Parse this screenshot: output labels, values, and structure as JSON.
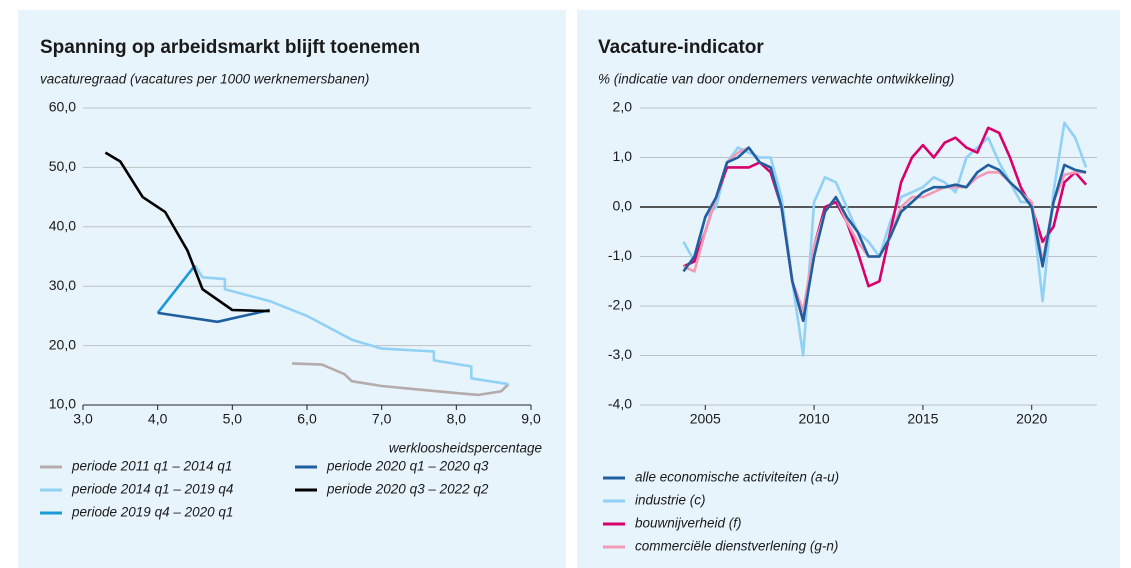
{
  "chart_data": [
    {
      "type": "line",
      "title": "Spanning op arbeidsmarkt blijft toenemen",
      "y_label": "vacaturegraad (vacatures per 1000 werknemersbanen)",
      "x_label": "werkloosheidspercentage",
      "xlim": [
        3,
        9
      ],
      "xticks": [
        {
          "value": 3,
          "label": "3,0"
        },
        {
          "value": 4,
          "label": "4,0"
        },
        {
          "value": 5,
          "label": "5,0"
        },
        {
          "value": 6,
          "label": "6,0"
        },
        {
          "value": 7,
          "label": "7,0"
        },
        {
          "value": 8,
          "label": "8,0"
        },
        {
          "value": 9,
          "label": "9,0"
        }
      ],
      "ylim": [
        10,
        60
      ],
      "yticks": [
        {
          "value": 10,
          "label": "10,0"
        },
        {
          "value": 20,
          "label": "20,0"
        },
        {
          "value": 30,
          "label": "30,0"
        },
        {
          "value": 40,
          "label": "40,0"
        },
        {
          "value": 50,
          "label": "50,0"
        },
        {
          "value": 60,
          "label": "60,0"
        }
      ],
      "grid": true,
      "series": [
        {
          "name": "periode 2011 q1 – 2014 q1",
          "color": "#b5abab",
          "x": [
            5.8,
            6.2,
            6.5,
            6.6,
            7.0,
            7.5,
            8.0,
            8.3,
            8.6,
            8.7
          ],
          "values": [
            17,
            16.8,
            15.2,
            14,
            13.2,
            12.6,
            12,
            11.7,
            12.3,
            13.5
          ]
        },
        {
          "name": "periode 2014 q1 – 2019 q4",
          "color": "#91d1f5",
          "x": [
            8.7,
            8.2,
            8.2,
            7.7,
            7.7,
            7.0,
            6.6,
            6.0,
            5.5,
            4.9,
            4.9,
            4.6,
            4.5
          ],
          "values": [
            13.5,
            14.5,
            16.5,
            17.5,
            19,
            19.5,
            21,
            25,
            27.5,
            29.5,
            31.2,
            31.5,
            33.5
          ]
        },
        {
          "name": "periode 2019 q4 – 2020 q1",
          "color": "#1a9ad9",
          "x": [
            4.5,
            4.0
          ],
          "values": [
            33.5,
            25.5
          ]
        },
        {
          "name": "periode 2020 q1 – 2020 q3",
          "color": "#1f5fa0",
          "x": [
            4.0,
            4.8,
            5.5
          ],
          "values": [
            25.5,
            24,
            26
          ]
        },
        {
          "name": "periode 2020 q3 – 2022 q2",
          "color": "#000000",
          "x": [
            5.5,
            5.0,
            4.6,
            4.4,
            4.1,
            3.8,
            3.5,
            3.3
          ],
          "values": [
            25.8,
            26,
            29.5,
            36,
            42.5,
            45,
            51,
            52.5
          ]
        }
      ]
    },
    {
      "type": "line",
      "title": "Vacature-indicator",
      "y_label": "% (indicatie van door ondernemers verwachte ontwikkeling)",
      "xlim": [
        2002,
        2023
      ],
      "xticks": [
        2005,
        2010,
        2015,
        2020
      ],
      "ylim": [
        -4,
        2
      ],
      "yticks": [
        {
          "value": -4,
          "label": "-4,0"
        },
        {
          "value": -3,
          "label": "-3,0"
        },
        {
          "value": -2,
          "label": "-2,0"
        },
        {
          "value": -1,
          "label": "-1,0"
        },
        {
          "value": 0,
          "label": "0,0"
        },
        {
          "value": 1,
          "label": "1,0"
        },
        {
          "value": 2,
          "label": "2,0"
        }
      ],
      "grid": true,
      "x": [
        2004,
        2004.5,
        2005,
        2005.5,
        2006,
        2006.5,
        2007,
        2007.5,
        2008,
        2008.5,
        2009,
        2009.5,
        2010,
        2010.5,
        2011,
        2011.5,
        2012,
        2012.5,
        2013,
        2013.5,
        2014,
        2014.5,
        2015,
        2015.5,
        2016,
        2016.5,
        2017,
        2017.5,
        2018,
        2018.5,
        2019,
        2019.5,
        2020,
        2020.5,
        2021,
        2021.5,
        2022,
        2022.5
      ],
      "series": [
        {
          "name": "industrie (c)",
          "color": "#91d1f5",
          "values": [
            -0.7,
            -1.1,
            -0.2,
            0.0,
            0.9,
            1.2,
            1.1,
            1.0,
            1.0,
            0.2,
            -1.5,
            -3.0,
            0.1,
            0.6,
            0.5,
            0.0,
            -0.5,
            -0.7,
            -1.0,
            -0.3,
            0.2,
            0.3,
            0.4,
            0.6,
            0.5,
            0.3,
            1.0,
            1.2,
            1.4,
            0.9,
            0.5,
            0.1,
            0.1,
            -1.9,
            0.3,
            1.7,
            1.4,
            0.8
          ]
        },
        {
          "name": "bouwnijverheid (f)",
          "color": "#d9006c",
          "values": [
            -1.2,
            -1.1,
            -0.5,
            0.2,
            0.8,
            0.8,
            0.8,
            0.9,
            0.7,
            0.0,
            -1.5,
            -2.3,
            -0.8,
            0.0,
            0.1,
            -0.3,
            -0.9,
            -1.6,
            -1.5,
            -0.5,
            0.5,
            1.0,
            1.25,
            1.0,
            1.3,
            1.4,
            1.2,
            1.1,
            1.6,
            1.5,
            1.0,
            0.4,
            0.0,
            -0.7,
            -0.4,
            0.5,
            0.7,
            0.45
          ]
        },
        {
          "name": "commerciële dienstverlening (g-n)",
          "color": "#f29bb6",
          "values": [
            -1.2,
            -1.3,
            -0.5,
            0.2,
            0.9,
            1.1,
            1.2,
            0.9,
            0.8,
            0.0,
            -1.5,
            -2.1,
            -0.8,
            -0.1,
            0.2,
            -0.3,
            -0.7,
            -1.0,
            -1.0,
            -0.6,
            0.0,
            0.2,
            0.2,
            0.3,
            0.4,
            0.4,
            0.4,
            0.6,
            0.7,
            0.7,
            0.5,
            0.3,
            0.1,
            -1.1,
            0.1,
            0.65,
            0.7,
            0.7
          ]
        },
        {
          "name": "alle economische activiteiten (a-u)",
          "color": "#1f5fa0",
          "values": [
            -1.3,
            -1.0,
            -0.2,
            0.2,
            0.9,
            1.0,
            1.2,
            0.9,
            0.8,
            0.0,
            -1.5,
            -2.3,
            -1.0,
            -0.1,
            0.2,
            -0.2,
            -0.5,
            -1.0,
            -1.0,
            -0.6,
            -0.1,
            0.1,
            0.3,
            0.4,
            0.4,
            0.45,
            0.4,
            0.7,
            0.85,
            0.75,
            0.5,
            0.3,
            0.0,
            -1.2,
            0.1,
            0.85,
            0.75,
            0.7
          ]
        }
      ],
      "legend_order": [
        3,
        0,
        1,
        2
      ]
    }
  ]
}
